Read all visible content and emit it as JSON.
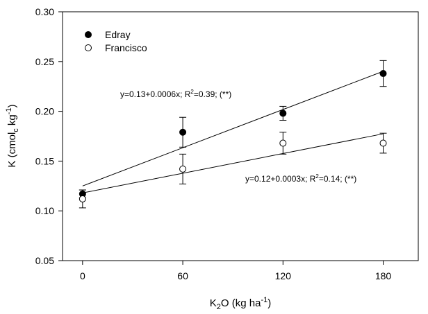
{
  "chart_data": {
    "type": "scatter",
    "x_label": {
      "base": "K",
      "sub": "2",
      "mid": "O (kg ha",
      "sup": "-1",
      "end": ")"
    },
    "y_label": {
      "base": "K (cmol",
      "sub": "c",
      "mid": " kg",
      "sup": "-1",
      "end": ")"
    },
    "xlim": [
      -12,
      201
    ],
    "ylim": [
      0.05,
      0.3
    ],
    "x_ticks": [
      0,
      60,
      120,
      180
    ],
    "x_tick_labels": [
      "0",
      "60",
      "120",
      "180"
    ],
    "y_ticks": [
      0.05,
      0.1,
      0.15,
      0.2,
      0.25,
      0.3
    ],
    "y_tick_labels": [
      "0.05",
      "0.10",
      "0.15",
      "0.20",
      "0.25",
      "0.30"
    ],
    "grid": false,
    "legend_position": "top-left",
    "series": [
      {
        "name": "Edray",
        "marker": "filled-circle",
        "color": "#000000",
        "x": [
          0,
          60,
          120,
          180
        ],
        "y": [
          0.117,
          0.179,
          0.198,
          0.238
        ],
        "yerr": [
          0.004,
          0.015,
          0.007,
          0.013
        ],
        "fit": {
          "intercept": 0.125,
          "slope": 0.00064
        },
        "equation": {
          "pre": "y=0.13+0.0006x; R",
          "sup": "2",
          "post": "=0.39; (**)"
        }
      },
      {
        "name": "Francisco",
        "marker": "open-circle",
        "color": "#000000",
        "x": [
          0,
          60,
          120,
          180
        ],
        "y": [
          0.112,
          0.142,
          0.168,
          0.168
        ],
        "yerr": [
          0.009,
          0.015,
          0.011,
          0.01
        ],
        "fit": {
          "intercept": 0.118,
          "slope": 0.00033
        },
        "equation": {
          "pre": "y=0.12+0.0003x; R",
          "sup": "2",
          "post": "=0.14; (**)"
        }
      }
    ]
  }
}
